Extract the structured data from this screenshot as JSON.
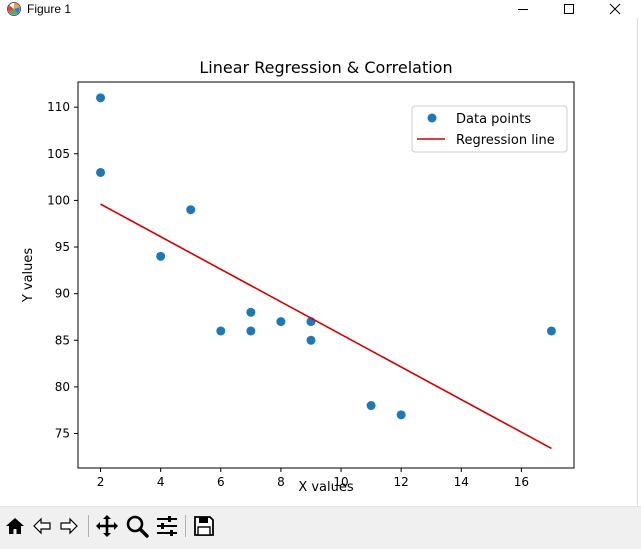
{
  "window": {
    "title": "Figure 1",
    "app_icon": "matplotlib-icon",
    "buttons": [
      "minimize-icon",
      "maximize-icon",
      "close-icon"
    ]
  },
  "toolbar": {
    "buttons": [
      "home-icon",
      "back-arrow-icon",
      "forward-arrow-icon",
      "pan-move-icon",
      "zoom-magnifier-icon",
      "configure-subplots-icon",
      "save-floppy-icon"
    ]
  },
  "chart_data": {
    "type": "scatter",
    "title": "Linear Regression & Correlation",
    "xlabel": "X values",
    "ylabel": "Y values",
    "xlim": [
      1.25,
      17.75
    ],
    "ylim": [
      71.3,
      112.7
    ],
    "xticks": [
      2,
      4,
      6,
      8,
      10,
      12,
      14,
      16
    ],
    "yticks": [
      75,
      80,
      85,
      90,
      95,
      100,
      105,
      110
    ],
    "grid": false,
    "legend_position": "top-right",
    "colors": {
      "points": "#1f77b4",
      "line": "#d00000"
    },
    "series": [
      {
        "name": "Data points",
        "kind": "scatter",
        "x": [
          2,
          2,
          4,
          5,
          6,
          7,
          7,
          8,
          9,
          9,
          11,
          12,
          17
        ],
        "y": [
          111,
          103,
          94,
          99,
          86,
          86,
          88,
          87,
          87,
          85,
          78,
          77,
          86
        ]
      },
      {
        "name": "Regression line",
        "kind": "line",
        "x": [
          2,
          17
        ],
        "y": [
          99.6,
          73.4
        ]
      }
    ]
  }
}
